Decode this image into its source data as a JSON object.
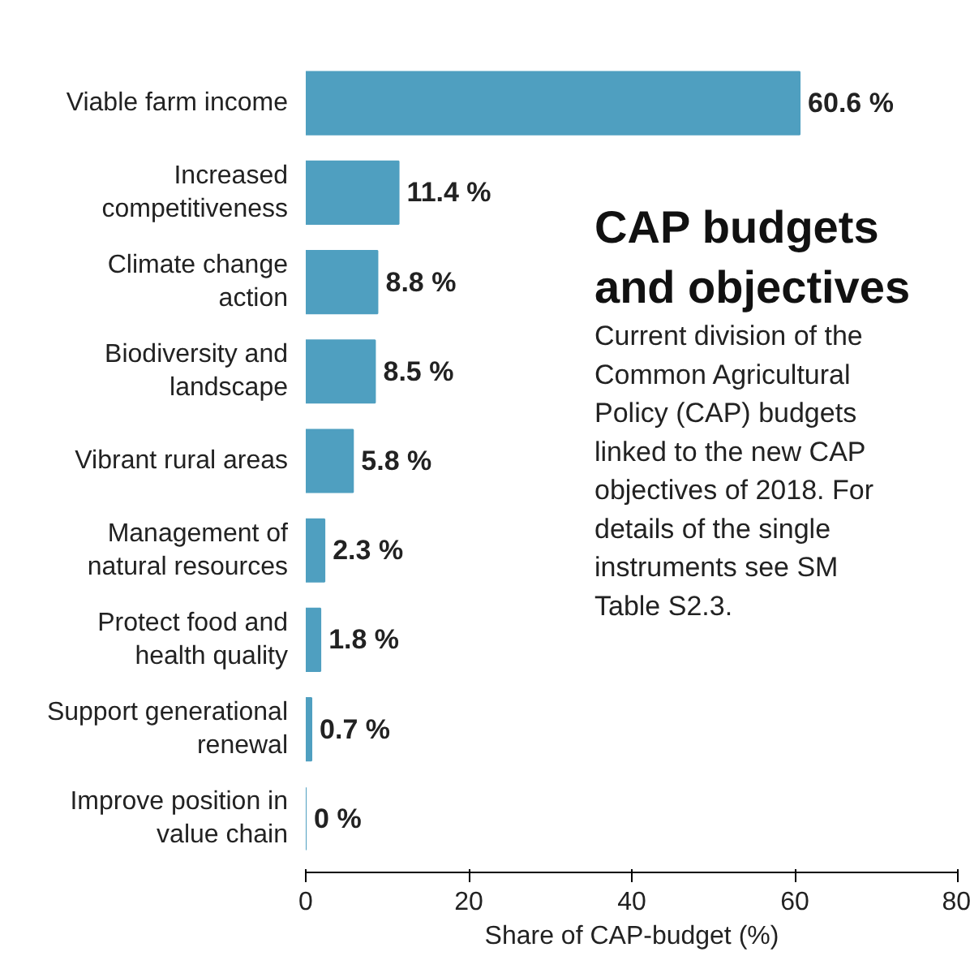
{
  "chart_data": {
    "type": "bar",
    "orientation": "horizontal",
    "title": "CAP budgets and objectives",
    "subtitle": "Current division of the Common Agricultural Policy (CAP) budgets linked to the new CAP objectives of 2018. For details of the single instruments see SM Table S2.3.",
    "xlabel": "Share of CAP-budget (%)",
    "categories": [
      "Viable farm income",
      "Increased competitiveness",
      "Climate change action",
      "Biodiversity and landscape",
      "Vibrant rural areas",
      "Management of natural resources",
      "Protect food and health quality",
      "Support generational renewal",
      "Improve position in value chain"
    ],
    "values": [
      60.6,
      11.4,
      8.8,
      8.5,
      5.8,
      2.3,
      1.8,
      0.7,
      0
    ],
    "value_labels": [
      "60.6 %",
      "11.4 %",
      "8.8 %",
      "8.5 %",
      "5.8 %",
      "2.3 %",
      "1.8 %",
      "0.7 %",
      "0 %"
    ],
    "color": "#4f9fc0",
    "xlim": [
      0,
      80
    ],
    "xticks": [
      0,
      20,
      40,
      60,
      80
    ],
    "grid": false
  }
}
